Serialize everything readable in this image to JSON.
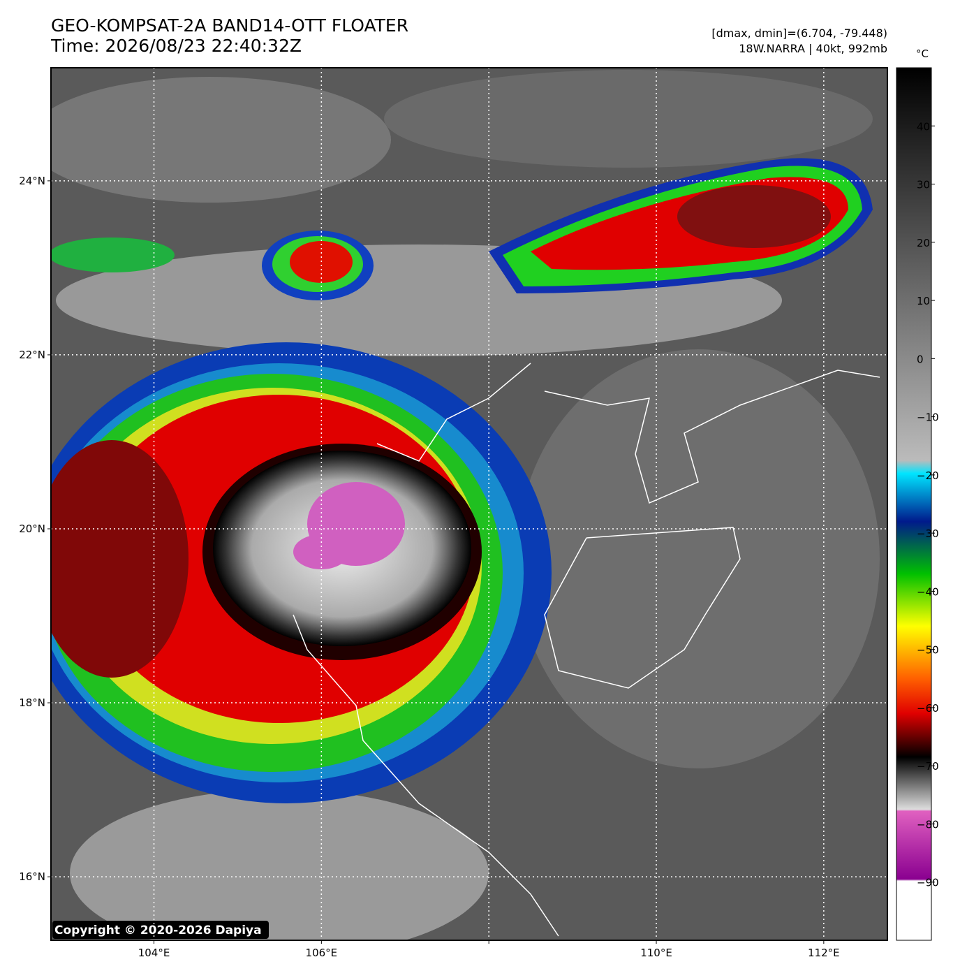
{
  "chart_data": {
    "type": "satellite-map",
    "title": "GEO-KOMPSAT-2A BAND14-OTT FLOATER",
    "subtitle": "Time: 2026/08/23 22:40:32Z",
    "annotations": [
      "[dmax, dmin]=(6.704, -79.448)",
      "18W.NARRA | 40kt, 992mb"
    ],
    "copyright": "Copyright © 2020-2026 Dapiya",
    "xlim": [
      102.77,
      112.76
    ],
    "ylim": [
      15.27,
      25.3
    ],
    "xticks": [
      {
        "value": 104,
        "label": "104°E"
      },
      {
        "value": 106,
        "label": "106°E"
      },
      {
        "value": 108,
        "label": ""
      },
      {
        "value": 110,
        "label": "110°E"
      },
      {
        "value": 112,
        "label": "112°E"
      }
    ],
    "yticks": [
      {
        "value": 16,
        "label": "16°N"
      },
      {
        "value": 18,
        "label": "18°N"
      },
      {
        "value": 20,
        "label": "20°N"
      },
      {
        "value": 22,
        "label": "22°N"
      },
      {
        "value": 24,
        "label": "24°N"
      }
    ],
    "grid": true,
    "colorbar": {
      "unit": "°C",
      "lim": [
        -100,
        50
      ],
      "ticks": [
        40,
        30,
        20,
        10,
        0,
        {
          "value": -10,
          "label": "−10"
        },
        {
          "value": -20,
          "label": "−20"
        },
        {
          "value": -30,
          "label": "−30"
        },
        {
          "value": -40,
          "label": "−40"
        },
        {
          "value": -50,
          "label": "−50"
        },
        {
          "value": -60,
          "label": "−60"
        },
        {
          "value": -70,
          "label": "−70"
        },
        {
          "value": -80,
          "label": "−80"
        },
        {
          "value": -90,
          "label": "−90"
        }
      ]
    }
  }
}
